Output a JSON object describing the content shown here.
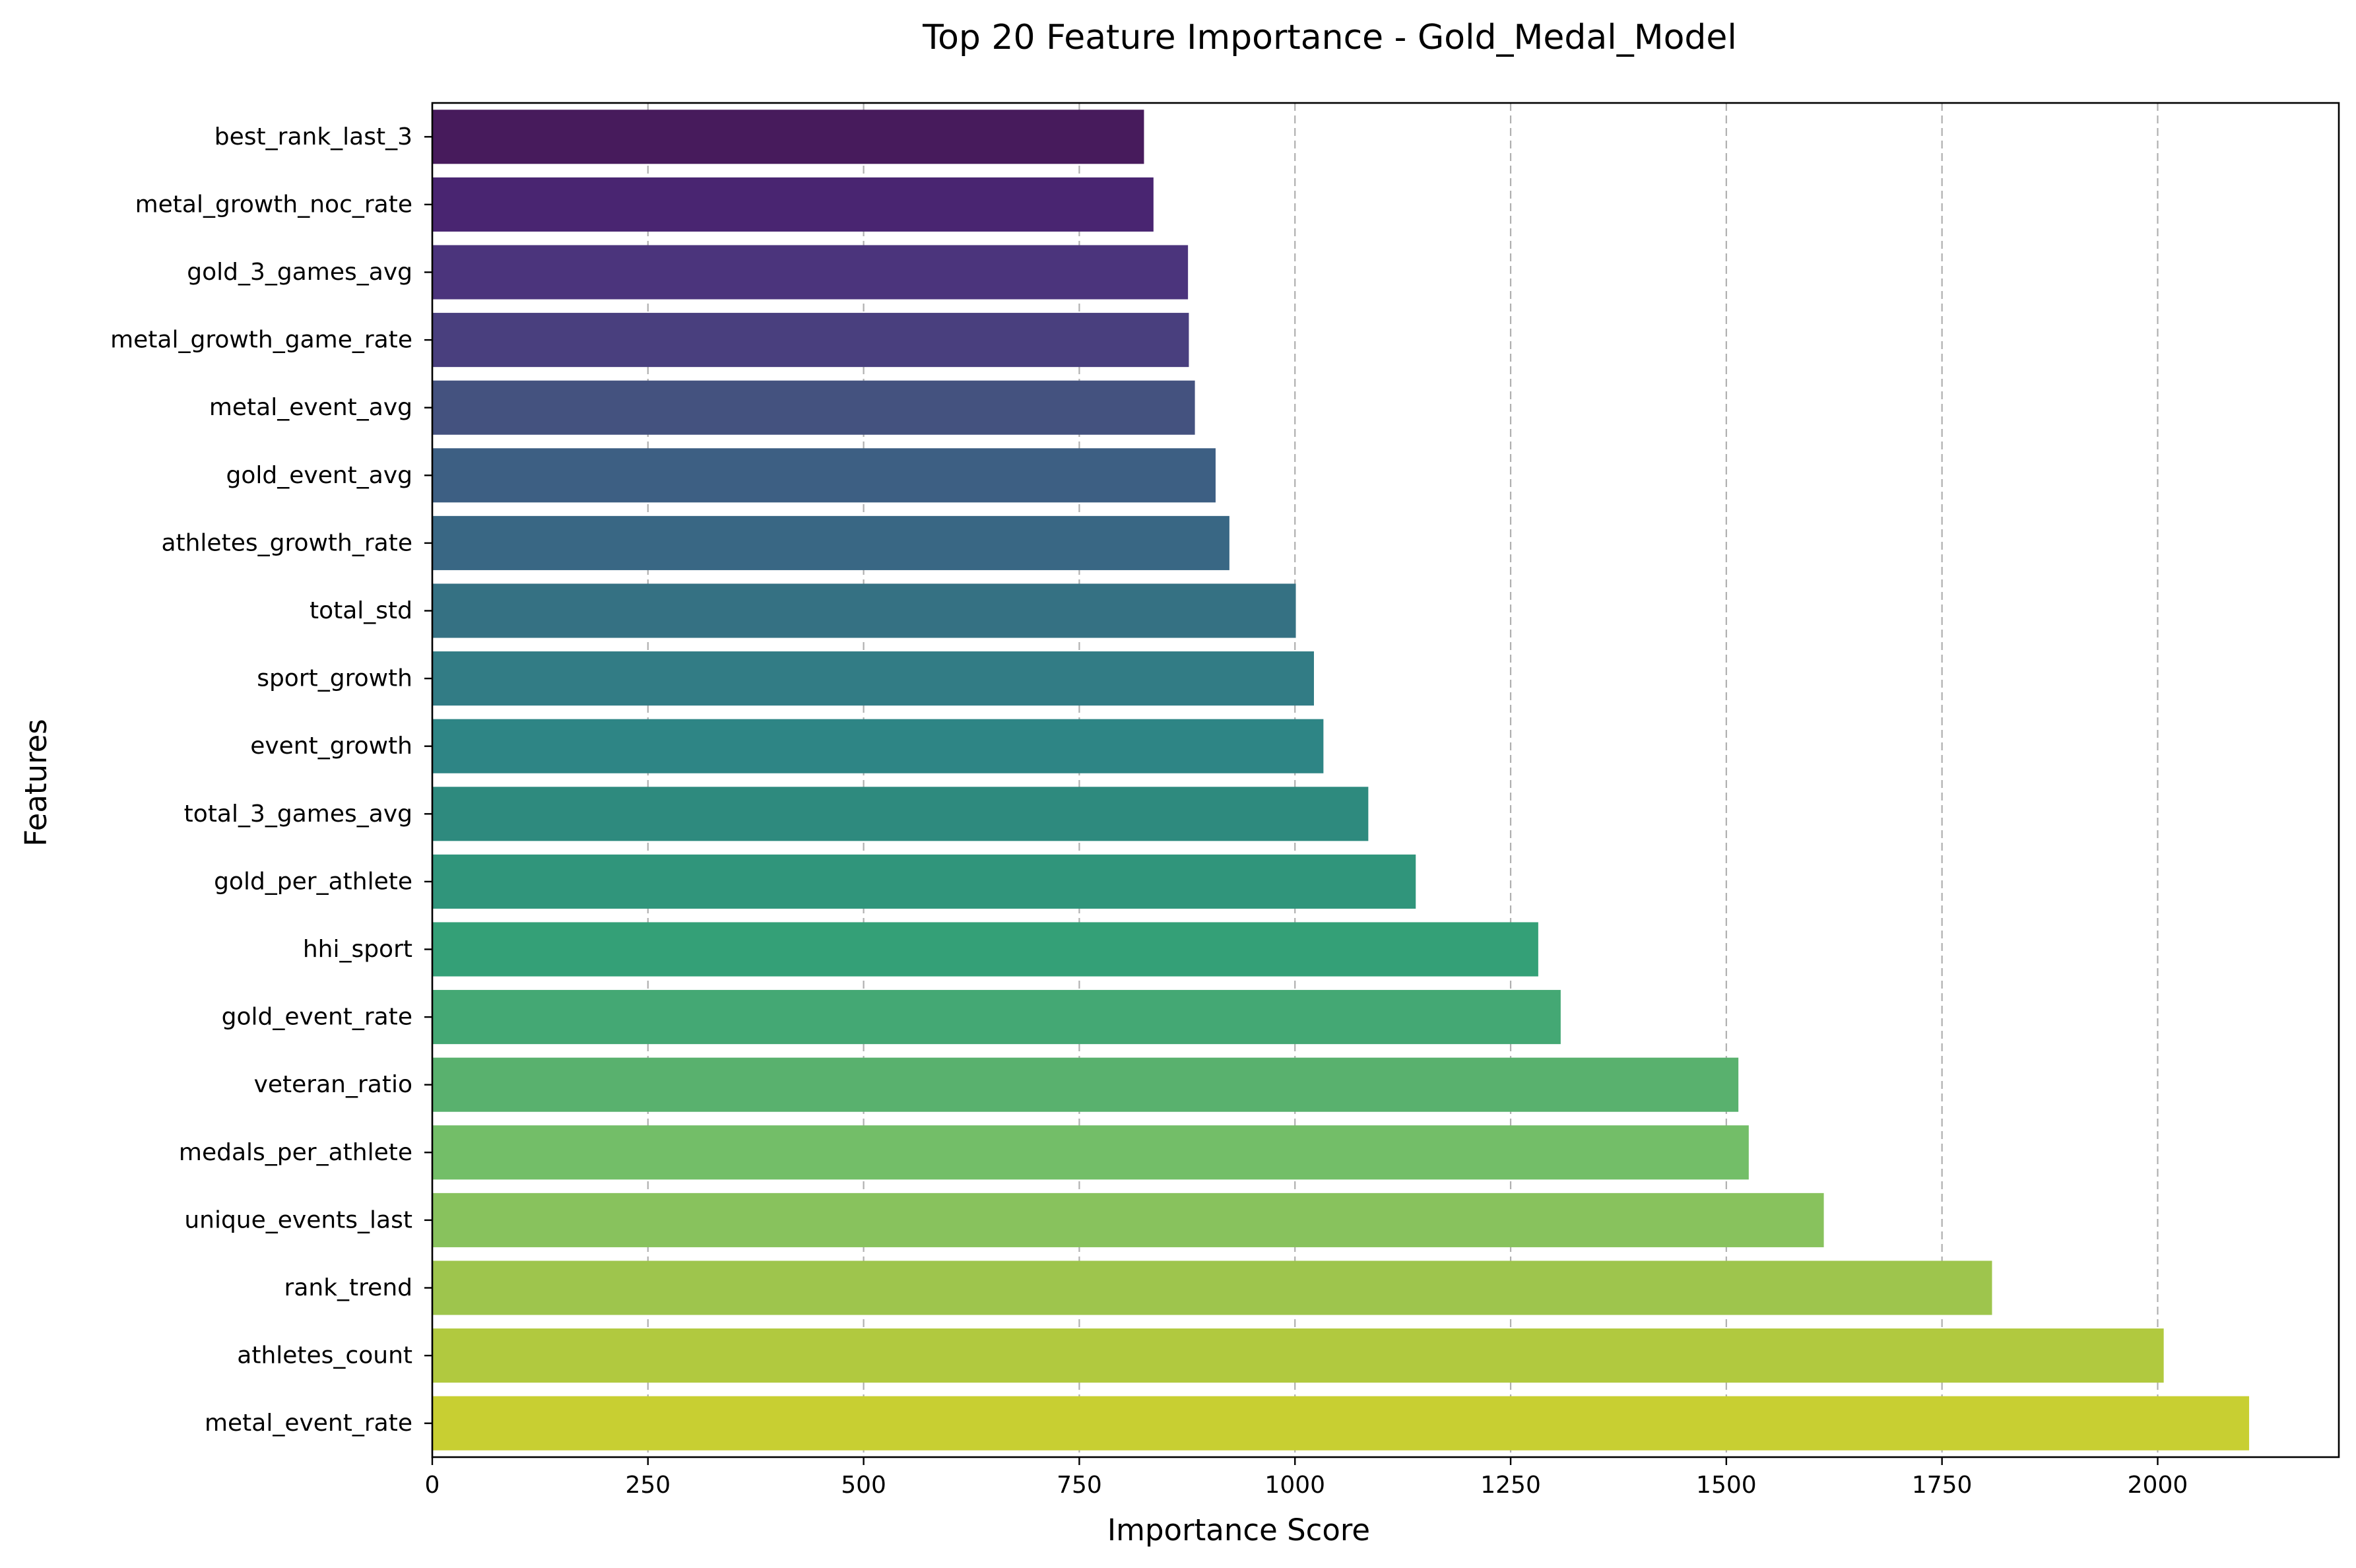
{
  "chart_data": {
    "type": "bar",
    "orientation": "horizontal",
    "title": "Top 20 Feature Importance - Gold_Medal_Model",
    "xlabel": "Importance Score",
    "ylabel": "Features",
    "xlim": [
      0,
      2210
    ],
    "x_ticks": [
      0,
      250,
      500,
      750,
      1000,
      1250,
      1500,
      1750,
      2000
    ],
    "x_tick_labels": [
      "0",
      "250",
      "500",
      "750",
      "1000",
      "1250",
      "1500",
      "1750",
      "2000"
    ],
    "grid": "x-axis dashed",
    "palette": "viridis",
    "categories": [
      "best_rank_last_3",
      "metal_growth_noc_rate",
      "gold_3_games_avg",
      "metal_growth_game_rate",
      "metal_event_avg",
      "gold_event_avg",
      "athletes_growth_rate",
      "total_std",
      "sport_growth",
      "event_growth",
      "total_3_games_avg",
      "gold_per_athlete",
      "hhi_sport",
      "gold_event_rate",
      "veteran_ratio",
      "medals_per_athlete",
      "unique_events_last",
      "rank_trend",
      "athletes_count",
      "metal_event_rate"
    ],
    "values": [
      825,
      836,
      876,
      877,
      884,
      908,
      924,
      1001,
      1022,
      1033,
      1085,
      1140,
      1282,
      1308,
      1514,
      1526,
      1613,
      1808,
      2007,
      2106
    ],
    "colors": [
      "#471b5c",
      "#492571",
      "#4b347c",
      "#493f7e",
      "#44527f",
      "#3d5f83",
      "#396784",
      "#357183",
      "#327c85",
      "#2e8585",
      "#2e8a7e",
      "#30957b",
      "#34a077",
      "#44a874",
      "#59b16e",
      "#73be68",
      "#88c25d",
      "#9ec54d",
      "#b1c93f",
      "#c8cf32"
    ]
  }
}
